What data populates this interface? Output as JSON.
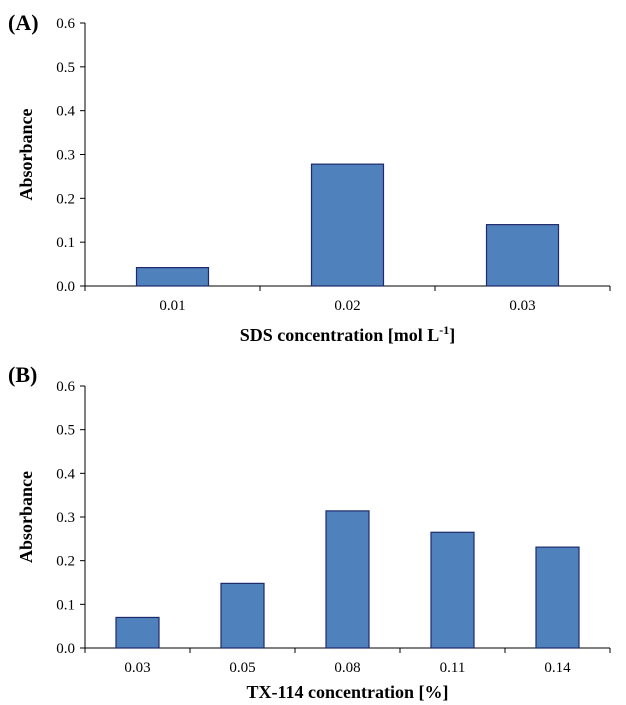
{
  "chart_data": [
    {
      "type": "bar",
      "panel_label": "(A)",
      "categories": [
        "0.01",
        "0.02",
        "0.03"
      ],
      "values": [
        0.042,
        0.278,
        0.14
      ],
      "xlabel": "SDS concentration  [mol L",
      "xlabel_sup": "-1",
      "xlabel_tail": "]",
      "ylabel": "Absorbance",
      "ylim": [
        0,
        0.6
      ],
      "yticks": [
        "0.0",
        "0.1",
        "0.2",
        "0.3",
        "0.4",
        "0.5",
        "0.6"
      ],
      "bar_color": "#4f81bd",
      "bar_edge": "#1f2a6b",
      "grid": false
    },
    {
      "type": "bar",
      "panel_label": "(B)",
      "categories": [
        "0.03",
        "0.05",
        "0.08",
        "0.11",
        "0.14"
      ],
      "values": [
        0.07,
        0.148,
        0.314,
        0.265,
        0.231
      ],
      "xlabel": "TX-114 concentration  [%]",
      "ylabel": "Absorbance",
      "ylim": [
        0,
        0.6
      ],
      "yticks": [
        "0.0",
        "0.1",
        "0.2",
        "0.3",
        "0.4",
        "0.5",
        "0.6"
      ],
      "bar_color": "#4f81bd",
      "bar_edge": "#1f2a6b",
      "grid": false
    }
  ]
}
